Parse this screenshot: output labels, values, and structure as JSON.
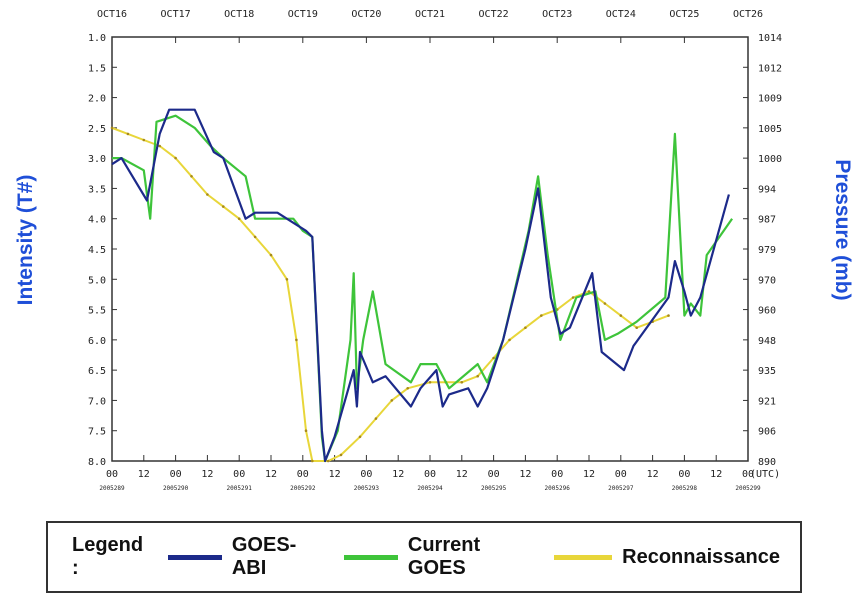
{
  "chart_data": {
    "type": "line",
    "y_left": {
      "label": "Intensity (T#)",
      "min": 1.0,
      "max": 8.0,
      "inverted": true,
      "ticks": [
        "1.0",
        "1.5",
        "2.0",
        "2.5",
        "3.0",
        "3.5",
        "4.0",
        "4.5",
        "5.0",
        "5.5",
        "6.0",
        "6.5",
        "7.0",
        "7.5",
        "8.0"
      ]
    },
    "y_right": {
      "label": "Pressure (mb)",
      "ticks": [
        "1014",
        "1012",
        "1009",
        "1005",
        "1000",
        "994",
        "987",
        "979",
        "970",
        "960",
        "948",
        "935",
        "921",
        "906",
        "890"
      ]
    },
    "x_bottom": {
      "unit_label": "(UTC)",
      "ticks": [
        "00",
        "12",
        "00",
        "12",
        "00",
        "12",
        "00",
        "12",
        "00",
        "12",
        "00",
        "12",
        "00",
        "12",
        "00",
        "12",
        "00",
        "12",
        "00",
        "12",
        "00"
      ],
      "day_labels": [
        "2005289",
        "2005290",
        "2005291",
        "2005292",
        "2005293",
        "2005294",
        "2005295",
        "2005296",
        "2005297",
        "2005298",
        "2005299"
      ]
    },
    "x_top": {
      "day_labels": [
        "OCT16",
        "OCT17",
        "OCT18",
        "OCT19",
        "OCT20",
        "OCT21",
        "OCT22",
        "OCT23",
        "OCT24",
        "OCT25",
        "OCT26"
      ]
    },
    "legend_title": "Legend :",
    "series": [
      {
        "name": "GOES-ABI",
        "color": "#1c2a8a",
        "points": [
          [
            0,
            3.1
          ],
          [
            0.15,
            3.0
          ],
          [
            0.55,
            3.7
          ],
          [
            0.75,
            2.6
          ],
          [
            0.9,
            2.2
          ],
          [
            1.3,
            2.2
          ],
          [
            1.6,
            2.9
          ],
          [
            1.75,
            3.0
          ],
          [
            2.1,
            4.0
          ],
          [
            2.25,
            3.9
          ],
          [
            2.6,
            3.9
          ],
          [
            3.05,
            4.2
          ],
          [
            3.15,
            4.3
          ],
          [
            3.3,
            7.5
          ],
          [
            3.35,
            8.0
          ],
          [
            3.5,
            7.6
          ],
          [
            3.8,
            6.5
          ],
          [
            3.85,
            7.1
          ],
          [
            3.9,
            6.2
          ],
          [
            4.1,
            6.7
          ],
          [
            4.3,
            6.6
          ],
          [
            4.7,
            7.1
          ],
          [
            4.85,
            6.8
          ],
          [
            5.1,
            6.5
          ],
          [
            5.2,
            7.1
          ],
          [
            5.3,
            6.9
          ],
          [
            5.6,
            6.8
          ],
          [
            5.75,
            7.1
          ],
          [
            5.9,
            6.8
          ],
          [
            6.15,
            6.0
          ],
          [
            6.5,
            4.5
          ],
          [
            6.7,
            3.5
          ],
          [
            6.9,
            5.3
          ],
          [
            7.05,
            5.9
          ],
          [
            7.2,
            5.8
          ],
          [
            7.55,
            4.9
          ],
          [
            7.7,
            6.2
          ],
          [
            8.05,
            6.5
          ],
          [
            8.2,
            6.1
          ],
          [
            8.75,
            5.3
          ],
          [
            8.85,
            4.7
          ],
          [
            9.0,
            5.2
          ],
          [
            9.1,
            5.6
          ],
          [
            9.25,
            5.3
          ],
          [
            9.7,
            3.6
          ]
        ]
      },
      {
        "name": "Current GOES",
        "color": "#3ec43a",
        "points": [
          [
            0,
            3.0
          ],
          [
            0.15,
            3.0
          ],
          [
            0.5,
            3.2
          ],
          [
            0.6,
            4.0
          ],
          [
            0.7,
            2.4
          ],
          [
            1.0,
            2.3
          ],
          [
            1.3,
            2.5
          ],
          [
            1.55,
            2.8
          ],
          [
            1.75,
            3.0
          ],
          [
            2.1,
            3.3
          ],
          [
            2.25,
            4.0
          ],
          [
            2.85,
            4.0
          ],
          [
            3.0,
            4.2
          ],
          [
            3.15,
            4.3
          ],
          [
            3.3,
            7.6
          ],
          [
            3.35,
            8.0
          ],
          [
            3.55,
            7.5
          ],
          [
            3.75,
            6.0
          ],
          [
            3.8,
            4.9
          ],
          [
            3.85,
            6.8
          ],
          [
            3.95,
            6.0
          ],
          [
            4.1,
            5.2
          ],
          [
            4.3,
            6.4
          ],
          [
            4.7,
            6.7
          ],
          [
            4.85,
            6.4
          ],
          [
            5.1,
            6.4
          ],
          [
            5.3,
            6.8
          ],
          [
            5.75,
            6.4
          ],
          [
            5.9,
            6.7
          ],
          [
            6.15,
            6.0
          ],
          [
            6.55,
            4.2
          ],
          [
            6.7,
            3.3
          ],
          [
            6.85,
            4.6
          ],
          [
            7.05,
            6.0
          ],
          [
            7.3,
            5.3
          ],
          [
            7.6,
            5.2
          ],
          [
            7.75,
            6.0
          ],
          [
            7.95,
            5.9
          ],
          [
            8.25,
            5.7
          ],
          [
            8.7,
            5.3
          ],
          [
            8.85,
            2.6
          ],
          [
            9.0,
            5.6
          ],
          [
            9.1,
            5.4
          ],
          [
            9.25,
            5.6
          ],
          [
            9.35,
            4.6
          ],
          [
            9.75,
            4.0
          ]
        ]
      },
      {
        "name": "Reconnaissance",
        "color": "#e8d63a",
        "points": [
          [
            0,
            2.5
          ],
          [
            0.25,
            2.6
          ],
          [
            0.5,
            2.7
          ],
          [
            0.75,
            2.8
          ],
          [
            1.0,
            3.0
          ],
          [
            1.25,
            3.3
          ],
          [
            1.5,
            3.6
          ],
          [
            1.75,
            3.8
          ],
          [
            2.0,
            4.0
          ],
          [
            2.25,
            4.3
          ],
          [
            2.5,
            4.6
          ],
          [
            2.75,
            5.0
          ],
          [
            2.9,
            6.0
          ],
          [
            3.05,
            7.5
          ],
          [
            3.15,
            8.0
          ],
          [
            3.4,
            8.0
          ],
          [
            3.6,
            7.9
          ],
          [
            3.9,
            7.6
          ],
          [
            4.15,
            7.3
          ],
          [
            4.4,
            7.0
          ],
          [
            4.65,
            6.8
          ],
          [
            5.0,
            6.7
          ],
          [
            5.25,
            6.7
          ],
          [
            5.5,
            6.7
          ],
          [
            5.75,
            6.6
          ],
          [
            6.0,
            6.3
          ],
          [
            6.25,
            6.0
          ],
          [
            6.5,
            5.8
          ],
          [
            6.75,
            5.6
          ],
          [
            7.0,
            5.5
          ],
          [
            7.25,
            5.3
          ],
          [
            7.5,
            5.2
          ],
          [
            7.75,
            5.4
          ],
          [
            8.0,
            5.6
          ],
          [
            8.25,
            5.8
          ],
          [
            8.5,
            5.7
          ],
          [
            8.75,
            5.6
          ]
        ]
      }
    ]
  }
}
